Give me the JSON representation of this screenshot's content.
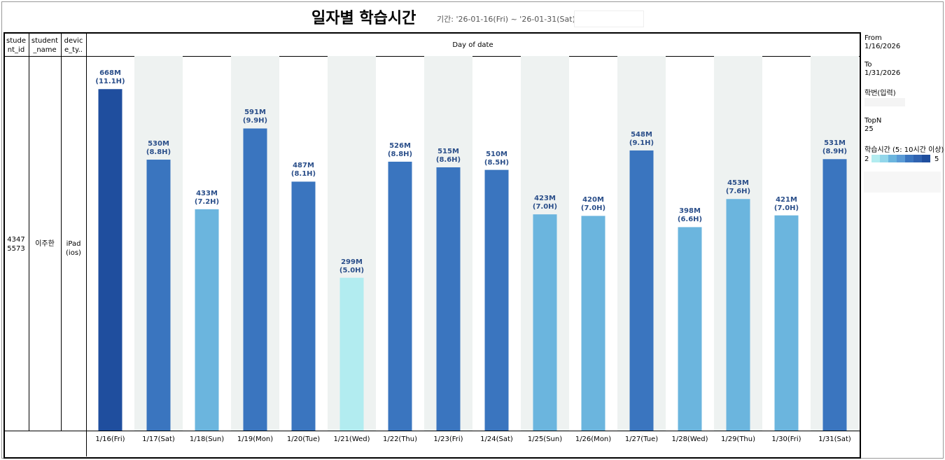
{
  "title": "일자별 학습시간",
  "subtitle": "기간: '26-01-16(Fri) ~ '26-01-31(Sat),",
  "table": {
    "headers": [
      "stude\nnt_id",
      "student\n_name",
      "devic\ne_ty.."
    ],
    "row": [
      "4347\n5573",
      "이주한",
      "iPad\n(ios)"
    ]
  },
  "filters": {
    "from_label": "From",
    "from_value": "1/16/2026",
    "to_label": "To",
    "to_value": "1/31/2026",
    "id_label": "학번(입력)",
    "topn_label": "TopN",
    "topn_value": "25"
  },
  "legend": {
    "title": "학습시간 (5: 10시간 이상)",
    "min_label": "2",
    "max_label": "5",
    "colors": [
      "#b2ecf0",
      "#92d6ea",
      "#6bb5de",
      "#5a9bd6",
      "#3a75bf",
      "#2f62b0",
      "#1f4e9e"
    ]
  },
  "chart_data": {
    "type": "bar",
    "x_title": "Day of date",
    "categories": [
      "1/16(Fri)",
      "1/17(Sat)",
      "1/18(Sun)",
      "1/19(Mon)",
      "1/20(Tue)",
      "1/21(Wed)",
      "1/22(Thu)",
      "1/23(Fri)",
      "1/24(Sat)",
      "1/25(Sun)",
      "1/26(Mon)",
      "1/27(Tue)",
      "1/28(Wed)",
      "1/29(Thu)",
      "1/30(Fri)",
      "1/31(Sat)"
    ],
    "values": [
      668,
      530,
      433,
      591,
      487,
      299,
      526,
      515,
      510,
      423,
      420,
      548,
      398,
      453,
      421,
      531
    ],
    "value_labels": [
      "668M\n(11.1H)",
      "530M\n(8.8H)",
      "433M\n(7.2H)",
      "591M\n(9.9H)",
      "487M\n(8.1H)",
      "299M\n(5.0H)",
      "526M\n(8.8H)",
      "515M\n(8.6H)",
      "510M\n(8.5H)",
      "423M\n(7.0H)",
      "420M\n(7.0H)",
      "548M\n(9.1H)",
      "398M\n(6.6H)",
      "453M\n(7.6H)",
      "421M\n(7.0H)",
      "531M\n(8.9H)"
    ],
    "colors": [
      "#1f4e9e",
      "#3a75bf",
      "#6bb5de",
      "#3a75bf",
      "#3a75bf",
      "#b2ecf0",
      "#3a75bf",
      "#3a75bf",
      "#3a75bf",
      "#6bb5de",
      "#6bb5de",
      "#3a75bf",
      "#6bb5de",
      "#6bb5de",
      "#6bb5de",
      "#3a75bf"
    ],
    "band_color": "#eef2f1",
    "ylim": [
      0,
      730
    ]
  }
}
